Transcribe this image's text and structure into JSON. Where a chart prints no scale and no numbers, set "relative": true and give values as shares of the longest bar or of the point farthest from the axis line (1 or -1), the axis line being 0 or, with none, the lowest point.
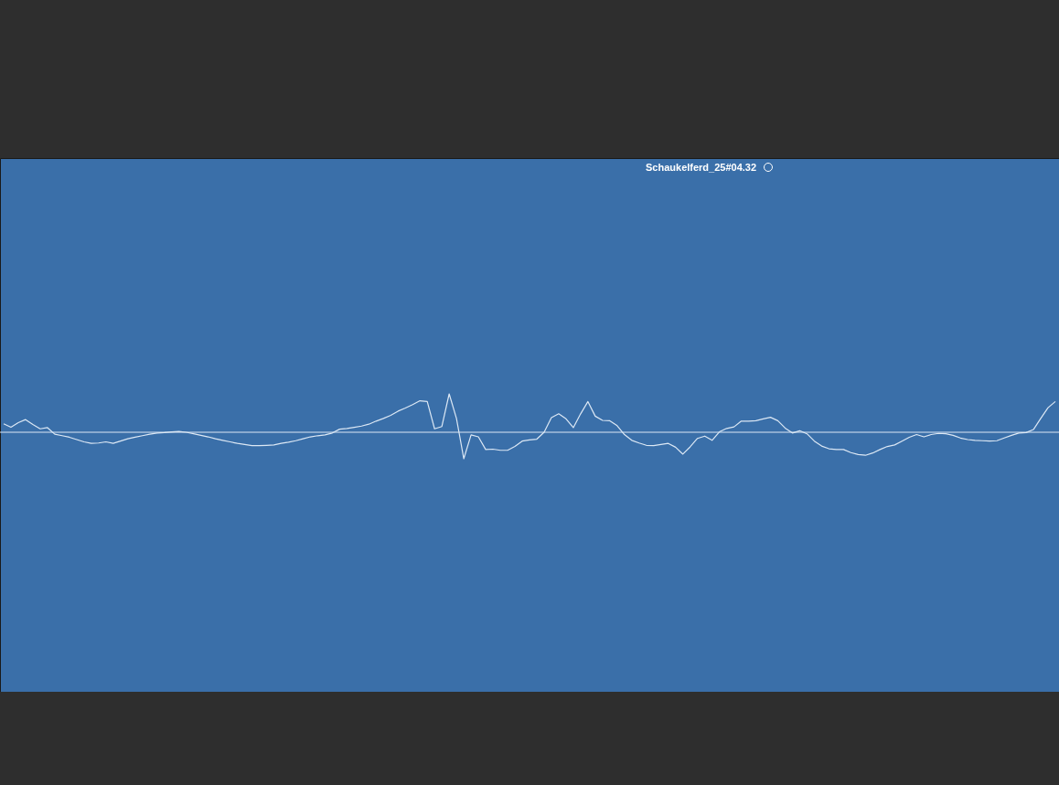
{
  "chart_data": {
    "type": "line",
    "title": "Schaukelferd_25#04.32",
    "relative": true,
    "line_style": "solid",
    "categories": [
      null,
      null,
      null,
      null,
      null,
      null,
      null,
      null,
      null,
      null,
      null,
      null,
      null,
      null,
      null,
      null,
      null,
      null,
      null,
      null,
      null,
      null,
      null,
      null,
      null,
      null,
      null,
      null,
      null,
      null,
      null,
      null,
      null,
      null,
      null,
      null,
      null,
      null,
      null,
      null,
      null,
      null,
      null,
      null,
      null,
      null,
      null,
      null,
      null,
      null,
      null,
      null,
      null,
      null,
      null,
      null,
      null,
      null,
      null,
      null,
      null,
      null,
      null,
      null,
      null,
      null,
      null,
      null,
      null,
      null,
      null,
      null,
      null,
      null,
      null,
      null,
      null,
      null,
      null,
      null,
      null,
      null,
      null,
      null,
      null,
      null,
      null,
      null,
      null,
      null,
      null,
      null,
      null,
      null,
      null,
      null,
      null,
      null,
      null,
      null,
      null,
      null,
      null,
      null,
      null,
      null,
      null,
      null,
      null,
      null,
      null,
      null,
      null,
      null,
      null,
      null,
      null,
      null,
      null,
      null,
      null,
      null,
      null,
      null,
      null,
      null,
      null,
      null,
      null,
      null,
      null,
      null,
      null,
      null,
      null,
      null,
      null,
      null,
      null,
      null,
      null,
      null,
      null,
      null,
      null
    ],
    "series": [
      {
        "color": "#dce8f5",
        "values": [
          0.22,
          0.13,
          0.25,
          0.33,
          0.2,
          0.09,
          0.12,
          -0.05,
          -0.09,
          -0.13,
          -0.19,
          -0.25,
          -0.29,
          -0.28,
          -0.25,
          -0.29,
          -0.23,
          -0.17,
          -0.13,
          -0.09,
          -0.05,
          -0.02,
          -0.01,
          0.01,
          0.02,
          0,
          -0.04,
          -0.08,
          -0.12,
          -0.17,
          -0.21,
          -0.25,
          -0.29,
          -0.32,
          -0.35,
          -0.35,
          -0.34,
          -0.33,
          -0.29,
          -0.26,
          -0.22,
          -0.17,
          -0.12,
          -0.09,
          -0.07,
          -0.02,
          0.08,
          0.1,
          0.13,
          0.16,
          0.21,
          0.29,
          0.36,
          0.44,
          0.55,
          0.63,
          0.72,
          0.82,
          0.8,
          0.09,
          0.15,
          1,
          0.36,
          -0.69,
          -0.07,
          -0.12,
          -0.45,
          -0.44,
          -0.47,
          -0.47,
          -0.37,
          -0.23,
          -0.2,
          -0.18,
          0,
          0.38,
          0.48,
          0.35,
          0.12,
          0.48,
          0.8,
          0.42,
          0.31,
          0.3,
          0.17,
          -0.06,
          -0.21,
          -0.28,
          -0.34,
          -0.35,
          -0.32,
          -0.29,
          -0.39,
          -0.57,
          -0.38,
          -0.16,
          -0.1,
          -0.21,
          0.01,
          0.1,
          0.14,
          0.29,
          0.29,
          0.3,
          0.35,
          0.39,
          0.3,
          0.11,
          -0.02,
          0.04,
          -0.04,
          -0.23,
          -0.36,
          -0.43,
          -0.45,
          -0.45,
          -0.53,
          -0.58,
          -0.6,
          -0.54,
          -0.45,
          -0.37,
          -0.33,
          -0.23,
          -0.13,
          -0.06,
          -0.12,
          -0.06,
          -0.03,
          -0.04,
          -0.08,
          -0.15,
          -0.19,
          -0.21,
          -0.22,
          -0.23,
          -0.22,
          -0.15,
          -0.08,
          -0.02,
          -0.01,
          0.07,
          0.36,
          0.64,
          0.8
        ]
      }
    ]
  }
}
